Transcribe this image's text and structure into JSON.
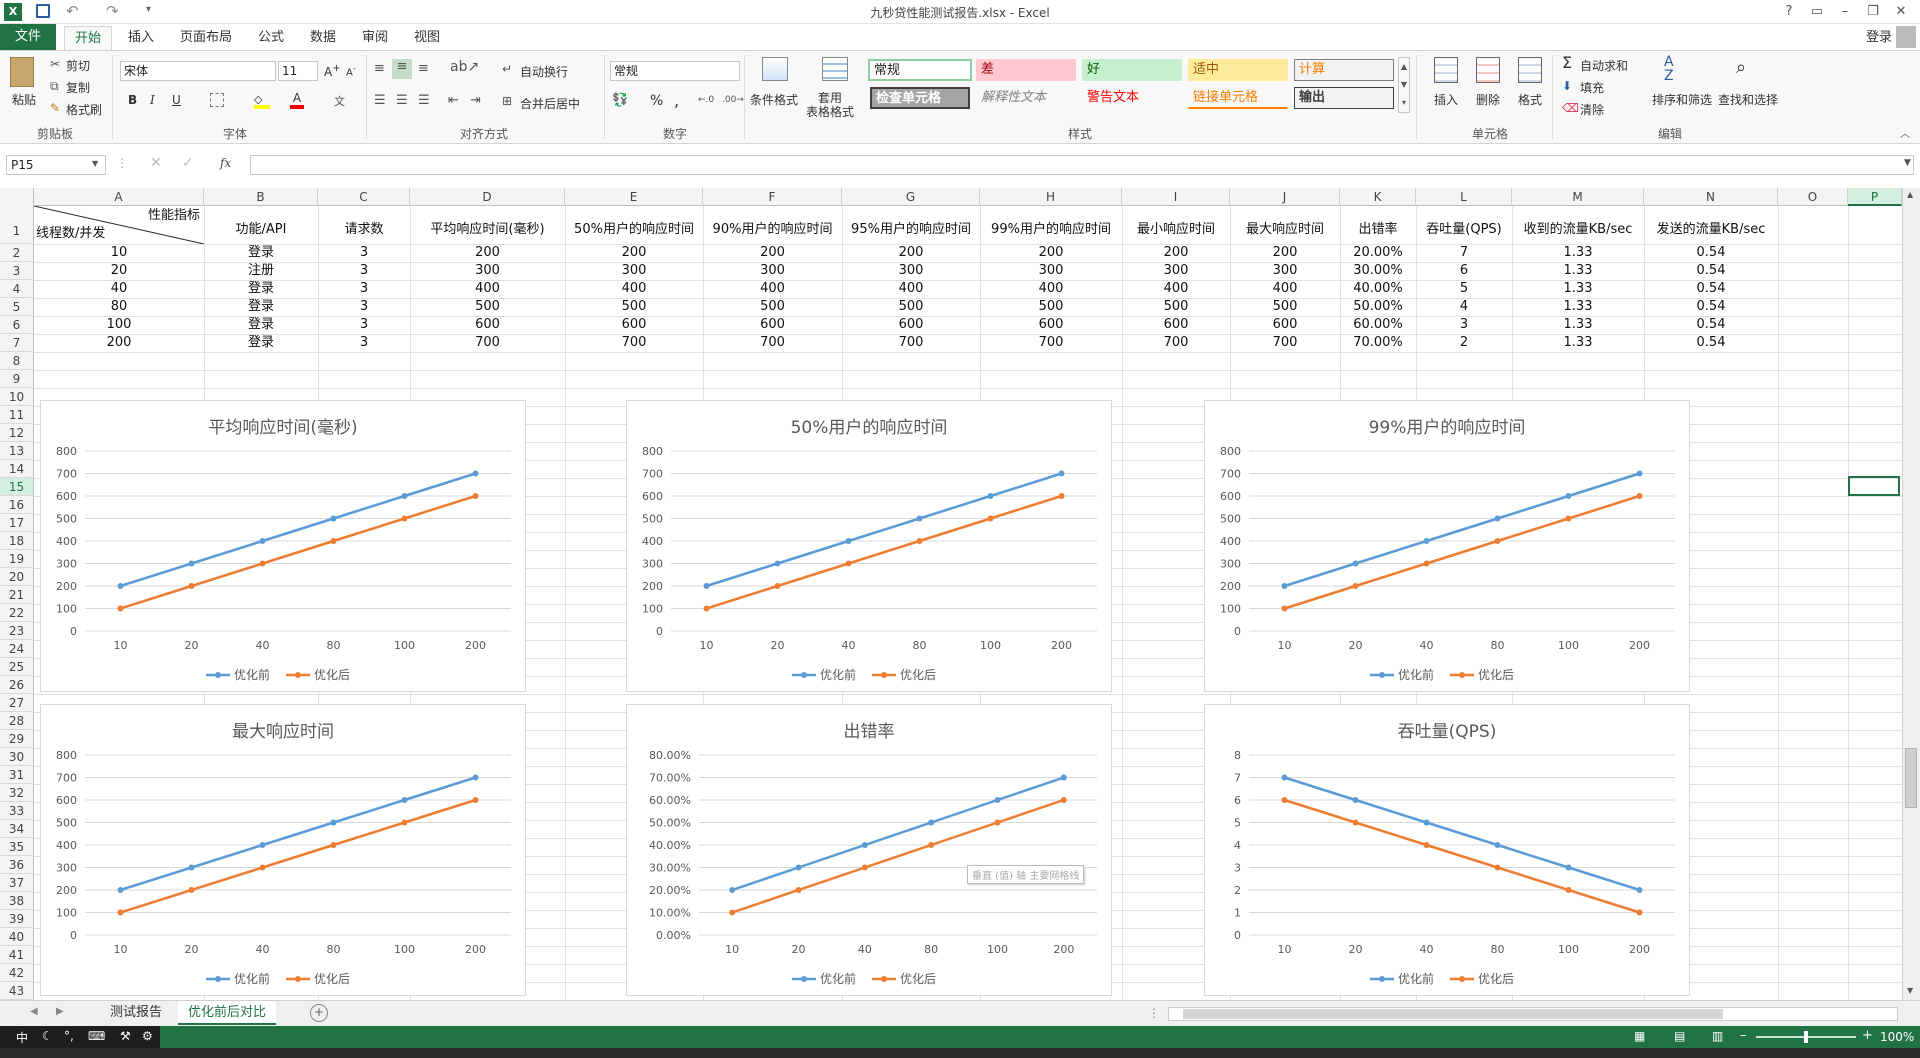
{
  "window": {
    "title": "九秒贷性能测试报告.xlsx - Excel",
    "login": "登录"
  },
  "tabs": [
    "文件",
    "开始",
    "插入",
    "页面布局",
    "公式",
    "数据",
    "审阅",
    "视图"
  ],
  "ribbon": {
    "clipboard": {
      "paste": "粘贴",
      "cut": "剪切",
      "copy": "复制",
      "format_painter": "格式刷",
      "label": "剪贴板"
    },
    "font": {
      "name": "宋体",
      "size": "11",
      "bold": "B",
      "italic": "I",
      "underline": "U",
      "label": "字体"
    },
    "alignment": {
      "wrap": "自动换行",
      "merge": "合并后居中",
      "label": "对齐方式"
    },
    "number": {
      "format": "常规",
      "percent": "%",
      "comma": ",",
      "label": "数字"
    },
    "styles": {
      "conditional": "条件格式",
      "table": "套用\n表格格式",
      "cells": [
        {
          "text": "常规",
          "bg": "#ffffff",
          "color": "#000000"
        },
        {
          "text": "差",
          "bg": "#ffc7ce",
          "color": "#9c0006"
        },
        {
          "text": "好",
          "bg": "#c6efce",
          "color": "#006100"
        },
        {
          "text": "适中",
          "bg": "#ffeb9c",
          "color": "#9c5700"
        },
        {
          "text": "计算",
          "bg": "#f2f2f2",
          "color": "#fa7d00"
        },
        {
          "text": "检查单元格",
          "bg": "#a5a5a5",
          "color": "#ffffff"
        },
        {
          "text": "解释性文本",
          "bg": "#ffffff",
          "color": "#7f7f7f"
        },
        {
          "text": "警告文本",
          "bg": "#ffffff",
          "color": "#ff0000"
        },
        {
          "text": "链接单元格",
          "bg": "#ffffff",
          "color": "#fa7d00"
        },
        {
          "text": "输出",
          "bg": "#f2f2f2",
          "color": "#3f3f3f"
        }
      ],
      "label": "样式"
    },
    "cells": {
      "insert": "插入",
      "delete": "删除",
      "format": "格式",
      "label": "单元格"
    },
    "editing": {
      "autosum": "自动求和",
      "fill": "填充",
      "clear": "清除",
      "sort": "排序和筛选",
      "find": "查找和选择",
      "label": "编辑"
    }
  },
  "formula_bar": {
    "name_box": "P15",
    "fx": "fx",
    "value": ""
  },
  "columns": [
    "A",
    "B",
    "C",
    "D",
    "E",
    "F",
    "G",
    "H",
    "I",
    "J",
    "K",
    "L",
    "M",
    "N",
    "O",
    "P"
  ],
  "rows": [
    "1",
    "2",
    "3",
    "4",
    "5",
    "6",
    "7",
    "8",
    "9",
    "10",
    "11",
    "12",
    "13",
    "14",
    "15",
    "16",
    "17",
    "18",
    "19",
    "20",
    "21",
    "22",
    "23",
    "24",
    "25",
    "26",
    "27",
    "28",
    "29",
    "30",
    "31",
    "32",
    "33",
    "34",
    "35",
    "36",
    "37",
    "38",
    "39",
    "40",
    "41",
    "42",
    "43"
  ],
  "table": {
    "corner_top": "性能指标",
    "corner_bottom": "线程数/并发",
    "headers": [
      "功能/API",
      "请求数",
      "平均响应时间(毫秒)",
      "50%用户的响应时间",
      "90%用户的响应时间",
      "95%用户的响应时间",
      "99%用户的响应时间",
      "最小响应时间",
      "最大响应时间",
      "出错率",
      "吞吐量(QPS)",
      "收到的流量KB/sec",
      "发送的流量KB/sec"
    ],
    "rows": [
      [
        "10",
        "登录",
        "3",
        "200",
        "200",
        "200",
        "200",
        "200",
        "200",
        "200",
        "20.00%",
        "7",
        "1.33",
        "0.54"
      ],
      [
        "20",
        "注册",
        "3",
        "300",
        "300",
        "300",
        "300",
        "300",
        "300",
        "300",
        "30.00%",
        "6",
        "1.33",
        "0.54"
      ],
      [
        "40",
        "登录",
        "3",
        "400",
        "400",
        "400",
        "400",
        "400",
        "400",
        "400",
        "40.00%",
        "5",
        "1.33",
        "0.54"
      ],
      [
        "80",
        "登录",
        "3",
        "500",
        "500",
        "500",
        "500",
        "500",
        "500",
        "500",
        "50.00%",
        "4",
        "1.33",
        "0.54"
      ],
      [
        "100",
        "登录",
        "3",
        "600",
        "600",
        "600",
        "600",
        "600",
        "600",
        "600",
        "60.00%",
        "3",
        "1.33",
        "0.54"
      ],
      [
        "200",
        "登录",
        "3",
        "700",
        "700",
        "700",
        "700",
        "700",
        "700",
        "700",
        "70.00%",
        "2",
        "1.33",
        "0.54"
      ]
    ]
  },
  "chart_data": [
    {
      "type": "line",
      "title": "平均响应时间(毫秒)",
      "categories": [
        "10",
        "20",
        "40",
        "80",
        "100",
        "200"
      ],
      "ylim": [
        0,
        800
      ],
      "yticks": [
        "0",
        "100",
        "200",
        "300",
        "400",
        "500",
        "600",
        "700",
        "800"
      ],
      "series": [
        {
          "name": "优化前",
          "values": [
            200,
            300,
            400,
            500,
            600,
            700
          ],
          "color": "#5b9bd5"
        },
        {
          "name": "优化后",
          "values": [
            100,
            200,
            300,
            400,
            500,
            600
          ],
          "color": "#ed7d31"
        }
      ],
      "legend": "bottom",
      "grid": true
    },
    {
      "type": "line",
      "title": "50%用户的响应时间",
      "categories": [
        "10",
        "20",
        "40",
        "80",
        "100",
        "200"
      ],
      "ylim": [
        0,
        800
      ],
      "yticks": [
        "0",
        "100",
        "200",
        "300",
        "400",
        "500",
        "600",
        "700",
        "800"
      ],
      "series": [
        {
          "name": "优化前",
          "values": [
            200,
            300,
            400,
            500,
            600,
            700
          ],
          "color": "#5b9bd5"
        },
        {
          "name": "优化后",
          "values": [
            100,
            200,
            300,
            400,
            500,
            600
          ],
          "color": "#ed7d31"
        }
      ],
      "legend": "bottom",
      "grid": true
    },
    {
      "type": "line",
      "title": "99%用户的响应时间",
      "categories": [
        "10",
        "20",
        "40",
        "80",
        "100",
        "200"
      ],
      "ylim": [
        0,
        800
      ],
      "yticks": [
        "0",
        "100",
        "200",
        "300",
        "400",
        "500",
        "600",
        "700",
        "800"
      ],
      "series": [
        {
          "name": "优化前",
          "values": [
            200,
            300,
            400,
            500,
            600,
            700
          ],
          "color": "#5b9bd5"
        },
        {
          "name": "优化后",
          "values": [
            100,
            200,
            300,
            400,
            500,
            600
          ],
          "color": "#ed7d31"
        }
      ],
      "legend": "bottom",
      "grid": true
    },
    {
      "type": "line",
      "title": "最大响应时间",
      "categories": [
        "10",
        "20",
        "40",
        "80",
        "100",
        "200"
      ],
      "ylim": [
        0,
        800
      ],
      "yticks": [
        "0",
        "100",
        "200",
        "300",
        "400",
        "500",
        "600",
        "700",
        "800"
      ],
      "series": [
        {
          "name": "优化前",
          "values": [
            200,
            300,
            400,
            500,
            600,
            700
          ],
          "color": "#5b9bd5"
        },
        {
          "name": "优化后",
          "values": [
            100,
            200,
            300,
            400,
            500,
            600
          ],
          "color": "#ed7d31"
        }
      ],
      "legend": "bottom",
      "grid": true
    },
    {
      "type": "line",
      "title": "出错率",
      "categories": [
        "10",
        "20",
        "40",
        "80",
        "100",
        "200"
      ],
      "ylim": [
        0,
        80
      ],
      "yticks": [
        "0.00%",
        "10.00%",
        "20.00%",
        "30.00%",
        "40.00%",
        "50.00%",
        "60.00%",
        "70.00%",
        "80.00%"
      ],
      "series": [
        {
          "name": "优化前",
          "values": [
            20,
            30,
            40,
            50,
            60,
            70
          ],
          "color": "#5b9bd5"
        },
        {
          "name": "优化后",
          "values": [
            10,
            20,
            30,
            40,
            50,
            60
          ],
          "color": "#ed7d31"
        }
      ],
      "legend": "bottom",
      "grid": true,
      "tooltip": "垂直 (值) 轴 主要网格线"
    },
    {
      "type": "line",
      "title": "吞吐量(QPS)",
      "categories": [
        "10",
        "20",
        "40",
        "80",
        "100",
        "200"
      ],
      "ylim": [
        0,
        8
      ],
      "yticks": [
        "0",
        "1",
        "2",
        "3",
        "4",
        "5",
        "6",
        "7",
        "8"
      ],
      "series": [
        {
          "name": "优化前",
          "values": [
            7,
            6,
            5,
            4,
            3,
            2
          ],
          "color": "#5b9bd5"
        },
        {
          "name": "优化后",
          "values": [
            6,
            5,
            4,
            3,
            2,
            1
          ],
          "color": "#ed7d31"
        }
      ],
      "legend": "bottom",
      "grid": true
    }
  ],
  "sheet_tabs": [
    "测试报告",
    "优化前后对比"
  ],
  "status": {
    "zoom": "100%"
  },
  "ime": {
    "mode": "中"
  }
}
